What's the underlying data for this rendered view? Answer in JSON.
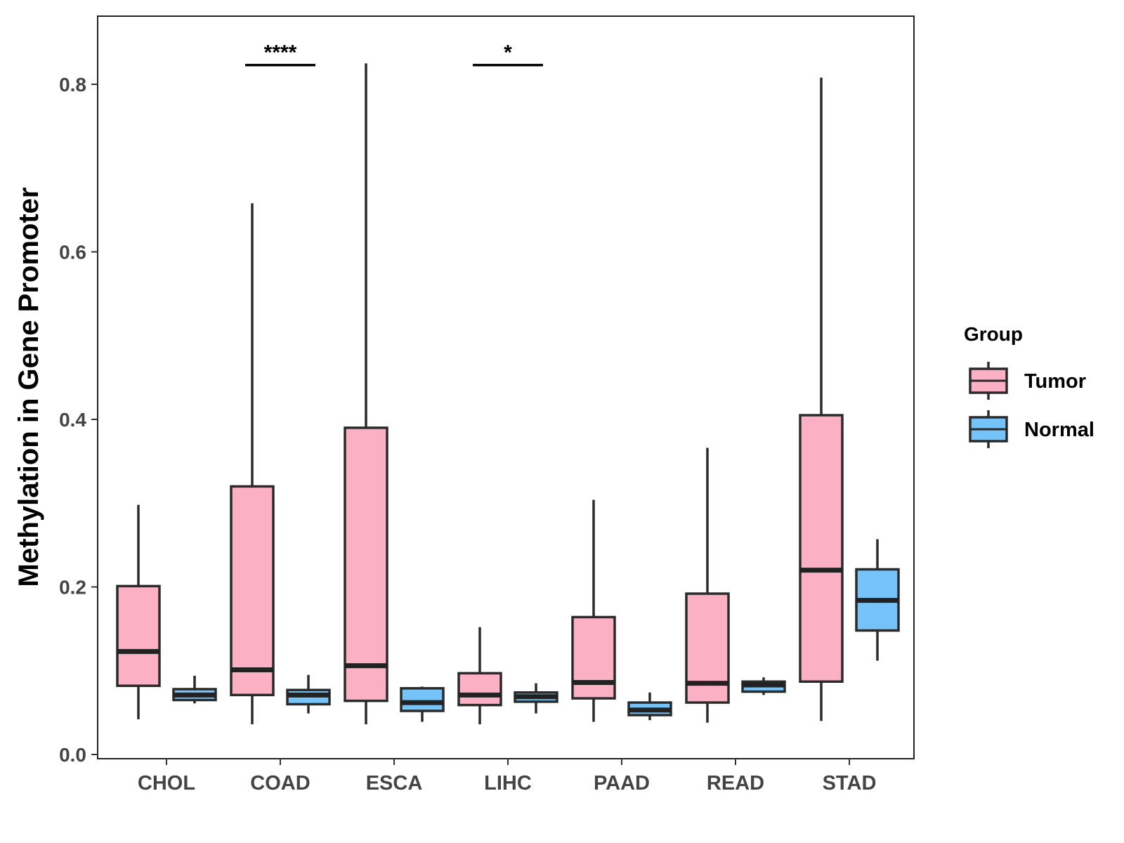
{
  "chart_data": {
    "type": "boxplot",
    "title": "",
    "xlabel": "",
    "ylabel": "Methylation in Gene Promoter",
    "ylim": [
      0,
      0.88
    ],
    "yticks": [
      0.0,
      0.2,
      0.4,
      0.6,
      0.8
    ],
    "ytick_labels": [
      "0.0",
      "0.2",
      "0.4",
      "0.6",
      "0.8"
    ],
    "categories": [
      "CHOL",
      "COAD",
      "ESCA",
      "LIHC",
      "PAAD",
      "READ",
      "STAD"
    ],
    "series": [
      {
        "name": "Tumor",
        "color": "#FBB1C3",
        "boxes": [
          {
            "min": 0.042,
            "q1": 0.082,
            "median": 0.123,
            "q3": 0.201,
            "max": 0.298
          },
          {
            "min": 0.036,
            "q1": 0.071,
            "median": 0.101,
            "q3": 0.32,
            "max": 0.658
          },
          {
            "min": 0.036,
            "q1": 0.064,
            "median": 0.106,
            "q3": 0.39,
            "max": 0.825
          },
          {
            "min": 0.036,
            "q1": 0.059,
            "median": 0.071,
            "q3": 0.097,
            "max": 0.152
          },
          {
            "min": 0.039,
            "q1": 0.067,
            "median": 0.086,
            "q3": 0.164,
            "max": 0.304
          },
          {
            "min": 0.038,
            "q1": 0.062,
            "median": 0.085,
            "q3": 0.192,
            "max": 0.366
          },
          {
            "min": 0.04,
            "q1": 0.087,
            "median": 0.22,
            "q3": 0.405,
            "max": 0.808
          }
        ]
      },
      {
        "name": "Normal",
        "color": "#75C3F9",
        "boxes": [
          {
            "min": 0.061,
            "q1": 0.065,
            "median": 0.071,
            "q3": 0.078,
            "max": 0.094
          },
          {
            "min": 0.049,
            "q1": 0.06,
            "median": 0.071,
            "q3": 0.077,
            "max": 0.095
          },
          {
            "min": 0.039,
            "q1": 0.052,
            "median": 0.062,
            "q3": 0.079,
            "max": 0.081
          },
          {
            "min": 0.049,
            "q1": 0.063,
            "median": 0.069,
            "q3": 0.074,
            "max": 0.085
          },
          {
            "min": 0.041,
            "q1": 0.047,
            "median": 0.053,
            "q3": 0.062,
            "max": 0.074
          },
          {
            "min": 0.071,
            "q1": 0.075,
            "median": 0.083,
            "q3": 0.087,
            "max": 0.092
          },
          {
            "min": 0.112,
            "q1": 0.148,
            "median": 0.184,
            "q3": 0.221,
            "max": 0.257
          }
        ]
      }
    ],
    "significance": [
      {
        "category": "COAD",
        "label": "****",
        "y": 0.823
      },
      {
        "category": "LIHC",
        "label": "*",
        "y": 0.823
      }
    ],
    "legend": {
      "title": "Group",
      "entries": [
        "Tumor",
        "Normal"
      ],
      "placement": "right"
    },
    "grid": false
  }
}
